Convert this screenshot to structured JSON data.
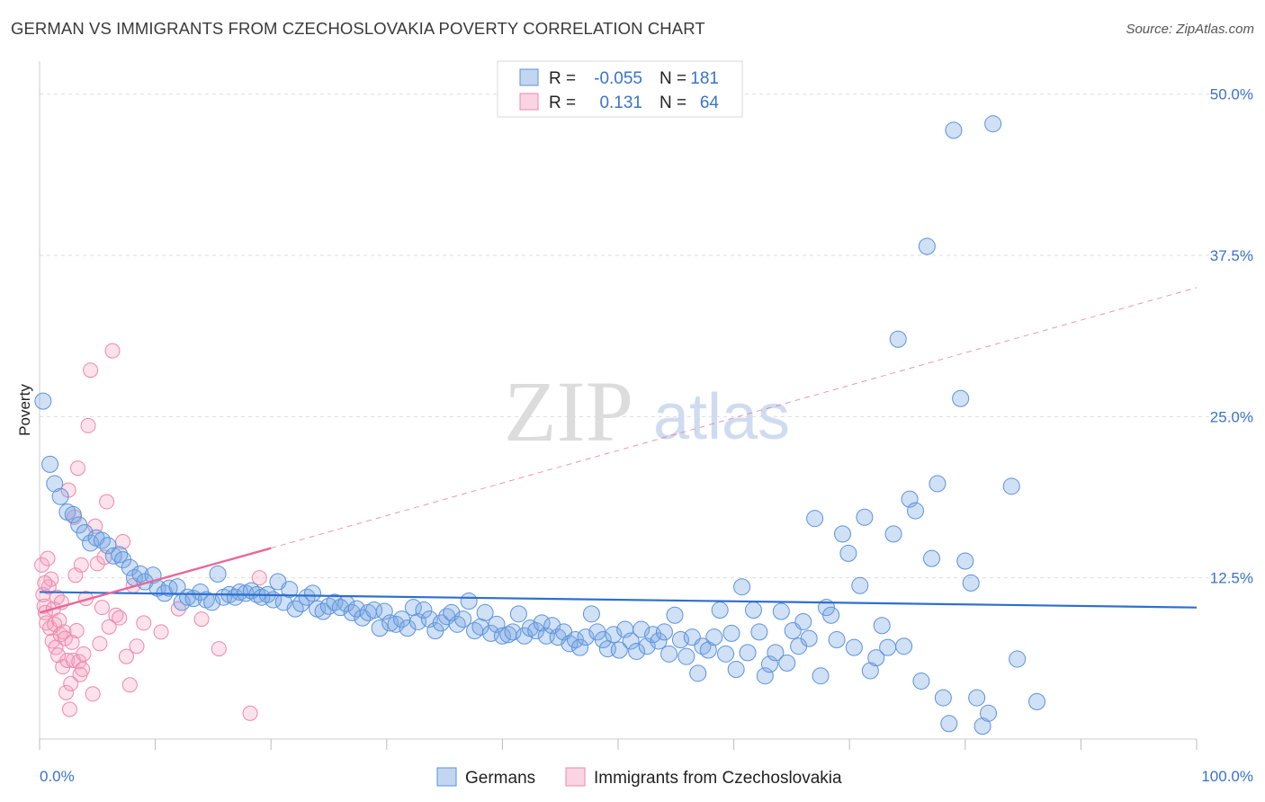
{
  "header": {
    "title": "GERMAN VS IMMIGRANTS FROM CZECHOSLOVAKIA POVERTY CORRELATION CHART",
    "source": "Source: ZipAtlas.com"
  },
  "watermark": {
    "zip": "ZIP",
    "atlas": "atlas"
  },
  "legend_top": [
    {
      "r_label": "R =",
      "r_value": "-0.055",
      "n_label": "N =",
      "n_value": "181",
      "color": "#6aa0e0"
    },
    {
      "r_label": "R =",
      "r_value": "0.131",
      "n_label": "N =",
      "n_value": "64",
      "color": "#f08fb0"
    }
  ],
  "legend_bottom": [
    {
      "label": "Germans",
      "color": "#6aa0e0"
    },
    {
      "label": "Immigrants from Czechoslovakia",
      "color": "#f08fb0"
    }
  ],
  "colors": {
    "blue_fill": "rgba(120,165,225,0.35)",
    "blue_stroke": "#5b93dc",
    "pink_fill": "rgba(245,160,190,0.30)",
    "pink_stroke": "#ee88aa",
    "blue_line": "#2e6fcf",
    "pink_line": "#e8689a",
    "grid": "#dddddd",
    "tick_text": "#3a73c9"
  },
  "chart_data": {
    "type": "scatter",
    "title": "GERMAN VS IMMIGRANTS FROM CZECHOSLOVAKIA POVERTY CORRELATION CHART",
    "ylabel": "Poverty",
    "xlabel": "",
    "xlim": [
      0,
      100
    ],
    "ylim": [
      0,
      52
    ],
    "x_tick_labels": [
      "0.0%",
      "100.0%"
    ],
    "y_ticks": [
      12.5,
      25.0,
      37.5,
      50.0
    ],
    "y_tick_labels": [
      "12.5%",
      "25.0%",
      "37.5%",
      "50.0%"
    ],
    "grid": true,
    "legend_placement": "top-center",
    "series": [
      {
        "name": "Germans",
        "r": -0.055,
        "n": 181,
        "trend": {
          "x": [
            0,
            100
          ],
          "y": [
            11.4,
            10.2
          ],
          "style": "solid"
        },
        "points": [
          [
            0.3,
            26.2
          ],
          [
            0.9,
            21.3
          ],
          [
            1.3,
            19.8
          ],
          [
            1.8,
            18.8
          ],
          [
            2.4,
            17.6
          ],
          [
            2.9,
            17.4
          ],
          [
            3.4,
            16.6
          ],
          [
            3.9,
            16.0
          ],
          [
            4.4,
            15.2
          ],
          [
            4.9,
            15.6
          ],
          [
            5.4,
            15.4
          ],
          [
            5.9,
            15.0
          ],
          [
            6.4,
            14.2
          ],
          [
            6.9,
            14.3
          ],
          [
            7.2,
            13.9
          ],
          [
            7.8,
            13.3
          ],
          [
            8.2,
            12.5
          ],
          [
            8.7,
            12.8
          ],
          [
            9.1,
            12.2
          ],
          [
            9.8,
            12.7
          ],
          [
            10.2,
            11.7
          ],
          [
            10.8,
            11.3
          ],
          [
            11.2,
            11.7
          ],
          [
            11.9,
            11.8
          ],
          [
            12.3,
            10.6
          ],
          [
            12.8,
            11.0
          ],
          [
            13.3,
            10.9
          ],
          [
            13.9,
            11.4
          ],
          [
            14.4,
            10.8
          ],
          [
            14.9,
            10.6
          ],
          [
            15.4,
            12.8
          ],
          [
            15.9,
            11.0
          ],
          [
            16.4,
            11.2
          ],
          [
            16.9,
            11.0
          ],
          [
            17.3,
            11.4
          ],
          [
            17.8,
            11.3
          ],
          [
            18.3,
            11.5
          ],
          [
            18.8,
            11.2
          ],
          [
            19.2,
            11.0
          ],
          [
            19.7,
            11.2
          ],
          [
            20.2,
            10.8
          ],
          [
            20.6,
            12.2
          ],
          [
            21.1,
            10.6
          ],
          [
            21.6,
            11.6
          ],
          [
            22.1,
            10.1
          ],
          [
            22.6,
            10.5
          ],
          [
            23.1,
            11.0
          ],
          [
            23.6,
            11.3
          ],
          [
            24.0,
            10.1
          ],
          [
            24.5,
            9.9
          ],
          [
            25.0,
            10.3
          ],
          [
            25.5,
            10.6
          ],
          [
            26.0,
            10.2
          ],
          [
            26.5,
            10.5
          ],
          [
            27.0,
            9.8
          ],
          [
            27.4,
            10.1
          ],
          [
            27.9,
            9.4
          ],
          [
            28.4,
            9.8
          ],
          [
            28.9,
            10.0
          ],
          [
            29.4,
            8.6
          ],
          [
            29.8,
            9.9
          ],
          [
            30.3,
            9.0
          ],
          [
            30.8,
            8.9
          ],
          [
            31.3,
            9.3
          ],
          [
            31.8,
            8.6
          ],
          [
            32.3,
            10.2
          ],
          [
            32.7,
            9.1
          ],
          [
            33.2,
            10.0
          ],
          [
            33.7,
            9.3
          ],
          [
            34.2,
            8.4
          ],
          [
            34.7,
            9.0
          ],
          [
            35.2,
            9.5
          ],
          [
            35.6,
            9.8
          ],
          [
            36.1,
            8.9
          ],
          [
            36.6,
            9.3
          ],
          [
            37.1,
            10.7
          ],
          [
            37.6,
            8.4
          ],
          [
            38.1,
            8.7
          ],
          [
            38.5,
            9.8
          ],
          [
            39.0,
            8.2
          ],
          [
            39.5,
            8.9
          ],
          [
            40.0,
            8.0
          ],
          [
            40.5,
            8.1
          ],
          [
            40.9,
            8.3
          ],
          [
            41.4,
            9.7
          ],
          [
            41.9,
            8.0
          ],
          [
            42.4,
            8.6
          ],
          [
            42.9,
            8.4
          ],
          [
            43.4,
            9.0
          ],
          [
            43.8,
            8.0
          ],
          [
            44.3,
            8.8
          ],
          [
            44.8,
            7.9
          ],
          [
            45.3,
            8.3
          ],
          [
            45.8,
            7.4
          ],
          [
            46.3,
            7.7
          ],
          [
            46.7,
            7.1
          ],
          [
            47.2,
            7.9
          ],
          [
            47.7,
            9.7
          ],
          [
            48.2,
            8.3
          ],
          [
            48.7,
            7.7
          ],
          [
            49.1,
            7.0
          ],
          [
            49.6,
            8.1
          ],
          [
            50.1,
            6.9
          ],
          [
            50.6,
            8.5
          ],
          [
            51.1,
            7.6
          ],
          [
            51.6,
            6.8
          ],
          [
            52.0,
            8.5
          ],
          [
            52.5,
            7.2
          ],
          [
            53.0,
            8.1
          ],
          [
            53.5,
            7.6
          ],
          [
            54.0,
            8.3
          ],
          [
            54.4,
            6.6
          ],
          [
            54.9,
            9.6
          ],
          [
            55.4,
            7.7
          ],
          [
            55.9,
            6.4
          ],
          [
            56.4,
            7.9
          ],
          [
            56.9,
            5.1
          ],
          [
            57.3,
            7.2
          ],
          [
            57.8,
            6.9
          ],
          [
            58.3,
            7.9
          ],
          [
            58.8,
            10.0
          ],
          [
            59.3,
            6.6
          ],
          [
            59.8,
            8.2
          ],
          [
            60.2,
            5.4
          ],
          [
            60.7,
            11.8
          ],
          [
            61.2,
            6.7
          ],
          [
            61.7,
            10.0
          ],
          [
            62.2,
            8.3
          ],
          [
            62.7,
            4.9
          ],
          [
            63.1,
            5.8
          ],
          [
            63.6,
            6.7
          ],
          [
            64.1,
            9.9
          ],
          [
            64.6,
            5.9
          ],
          [
            65.1,
            8.4
          ],
          [
            65.6,
            7.2
          ],
          [
            66.0,
            9.1
          ],
          [
            66.5,
            7.8
          ],
          [
            67.0,
            17.1
          ],
          [
            67.5,
            4.9
          ],
          [
            68.0,
            10.2
          ],
          [
            68.4,
            9.6
          ],
          [
            68.9,
            7.7
          ],
          [
            69.4,
            15.9
          ],
          [
            69.9,
            14.4
          ],
          [
            70.4,
            7.1
          ],
          [
            70.9,
            11.9
          ],
          [
            71.3,
            17.2
          ],
          [
            71.8,
            5.3
          ],
          [
            72.3,
            6.3
          ],
          [
            72.8,
            8.8
          ],
          [
            73.3,
            7.1
          ],
          [
            73.8,
            15.9
          ],
          [
            74.2,
            31.0
          ],
          [
            74.7,
            7.2
          ],
          [
            75.2,
            18.6
          ],
          [
            75.7,
            17.7
          ],
          [
            76.2,
            4.5
          ],
          [
            76.7,
            38.2
          ],
          [
            77.1,
            14.0
          ],
          [
            77.6,
            19.8
          ],
          [
            78.1,
            3.2
          ],
          [
            78.6,
            1.2
          ],
          [
            79.0,
            47.2
          ],
          [
            79.6,
            26.4
          ],
          [
            80.0,
            13.8
          ],
          [
            80.5,
            12.1
          ],
          [
            81.0,
            3.2
          ],
          [
            81.5,
            1.0
          ],
          [
            82.0,
            2.0
          ],
          [
            82.4,
            47.7
          ],
          [
            84.0,
            19.6
          ],
          [
            84.5,
            6.2
          ],
          [
            86.2,
            2.9
          ]
        ]
      },
      {
        "name": "Immigrants from Czechoslovakia",
        "r": 0.131,
        "n": 64,
        "trend": {
          "x": [
            0,
            20
          ],
          "y": [
            9.8,
            14.8
          ],
          "style": "solid",
          "extended_x": [
            20,
            100
          ],
          "extended_y": [
            14.8,
            35.0
          ],
          "extended_style": "dashed"
        },
        "points": [
          [
            0.2,
            13.5
          ],
          [
            0.3,
            11.2
          ],
          [
            0.4,
            10.3
          ],
          [
            0.5,
            9.8
          ],
          [
            0.6,
            9.0
          ],
          [
            0.7,
            14.0
          ],
          [
            0.8,
            11.8
          ],
          [
            0.9,
            8.6
          ],
          [
            1.0,
            12.4
          ],
          [
            1.1,
            7.6
          ],
          [
            1.2,
            10.1
          ],
          [
            1.3,
            8.9
          ],
          [
            1.4,
            7.1
          ],
          [
            1.5,
            11.0
          ],
          [
            1.6,
            6.5
          ],
          [
            1.7,
            9.2
          ],
          [
            1.8,
            8.1
          ],
          [
            1.9,
            10.6
          ],
          [
            2.0,
            5.6
          ],
          [
            2.1,
            8.3
          ],
          [
            2.2,
            7.8
          ],
          [
            2.3,
            3.6
          ],
          [
            2.4,
            6.1
          ],
          [
            2.5,
            19.3
          ],
          [
            2.6,
            2.3
          ],
          [
            2.7,
            4.3
          ],
          [
            2.8,
            7.5
          ],
          [
            2.9,
            6.1
          ],
          [
            3.0,
            17.2
          ],
          [
            3.1,
            12.7
          ],
          [
            3.2,
            8.4
          ],
          [
            3.3,
            21.0
          ],
          [
            3.4,
            6.0
          ],
          [
            3.5,
            5.0
          ],
          [
            3.6,
            13.5
          ],
          [
            3.7,
            5.4
          ],
          [
            3.8,
            6.6
          ],
          [
            4.0,
            10.9
          ],
          [
            4.2,
            24.3
          ],
          [
            4.4,
            28.6
          ],
          [
            4.6,
            3.5
          ],
          [
            4.8,
            16.5
          ],
          [
            5.0,
            13.6
          ],
          [
            5.2,
            7.4
          ],
          [
            5.4,
            10.2
          ],
          [
            5.6,
            14.1
          ],
          [
            5.8,
            18.4
          ],
          [
            6.0,
            8.7
          ],
          [
            6.3,
            30.1
          ],
          [
            6.6,
            9.6
          ],
          [
            6.9,
            9.4
          ],
          [
            7.2,
            15.3
          ],
          [
            7.5,
            6.4
          ],
          [
            7.8,
            4.2
          ],
          [
            8.1,
            11.9
          ],
          [
            8.4,
            7.2
          ],
          [
            9.0,
            9.0
          ],
          [
            10.5,
            8.3
          ],
          [
            12.0,
            10.1
          ],
          [
            14.0,
            9.3
          ],
          [
            15.5,
            7.0
          ],
          [
            18.2,
            2.0
          ],
          [
            19.0,
            12.5
          ],
          [
            0.45,
            12.1
          ]
        ]
      }
    ]
  },
  "axis": {
    "y_label": "Poverty"
  }
}
